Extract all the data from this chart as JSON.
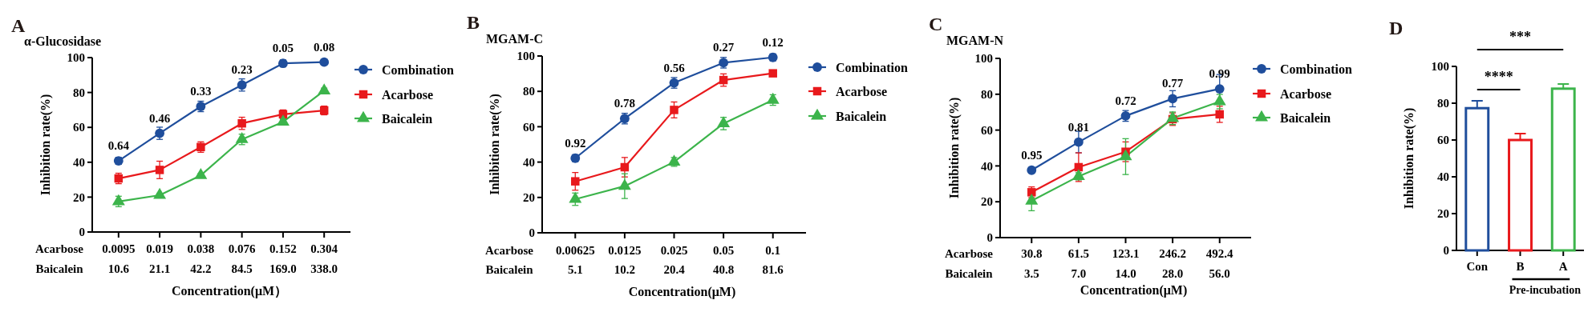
{
  "chart_data": [
    {
      "type": "line",
      "title": "α-Glucosidase",
      "xlabel": "Concentration(μM）",
      "ylabel": "Inhibition rate(%)",
      "categories": [
        "0.0095\n10.6",
        "0.019\n21.1",
        "0.038\n42.2",
        "0.076\n84.5",
        "0.152\n169.0",
        "0.304\n338.0"
      ],
      "ylim": [
        0,
        100
      ],
      "yticks": [
        0,
        20,
        40,
        60,
        80,
        100
      ],
      "legend": "right",
      "series": [
        {
          "name": "Combination",
          "color": "#1f4e9c",
          "marker": "circle",
          "values": [
            40.8,
            56.6,
            72,
            84.3,
            96.7,
            97.4
          ],
          "errors": [
            2,
            3.5,
            3,
            3.5,
            2,
            1
          ]
        },
        {
          "name": "Acarbose",
          "color": "#e8191c",
          "marker": "square",
          "values": [
            30.7,
            35.6,
            48.7,
            62.3,
            67.5,
            69.7
          ],
          "errors": [
            3,
            5,
            3,
            3.5,
            2.5,
            2.5
          ]
        },
        {
          "name": "Baicalein",
          "color": "#3cb44b",
          "marker": "triangle",
          "values": [
            17.5,
            21.1,
            32.5,
            53.1,
            63.1,
            81
          ],
          "errors": [
            3,
            1,
            1,
            3,
            1.5,
            1.5
          ]
        }
      ],
      "annotations": [
        "A",
        "Acarbose",
        "Baicalein",
        {
          "text": "0.64",
          "x": "0.0095\n10.6",
          "y": 40.8
        },
        {
          "text": "0.46",
          "x": "0.019\n21.1",
          "y": 56.6
        },
        {
          "text": "0.33",
          "x": "0.038\n42.2",
          "y": 72
        },
        {
          "text": "0.23",
          "x": "0.076\n84.5",
          "y": 84.3
        },
        {
          "text": "0.05",
          "x": "0.152\n169.0",
          "y": 96.7
        },
        {
          "text": "0.08",
          "x": "0.304\n338.0",
          "y": 97.4
        }
      ]
    },
    {
      "type": "line",
      "title": "MGAM-C",
      "xlabel": "Concentration(μM)",
      "ylabel": "Inhibition rate(%)",
      "categories": [
        "0.00625\n5.1",
        "0.0125\n10.2",
        "0.025\n20.4",
        "0.05\n40.8",
        "0.1\n81.6"
      ],
      "ylim": [
        0,
        100
      ],
      "yticks": [
        0,
        20,
        40,
        60,
        80,
        100
      ],
      "legend": "right",
      "series": [
        {
          "name": "Combination",
          "color": "#1f4e9c",
          "marker": "circle",
          "values": [
            42.2,
            64.6,
            84.8,
            96.2,
            99.2
          ],
          "errors": [
            2,
            3,
            3,
            3,
            2
          ]
        },
        {
          "name": "Acarbose",
          "color": "#e8191c",
          "marker": "square",
          "values": [
            29.1,
            37.1,
            69.5,
            86.4,
            90.2
          ],
          "errors": [
            5,
            5.5,
            4.5,
            3.5,
            1
          ]
        },
        {
          "name": "Baicalein",
          "color": "#3cb44b",
          "marker": "triangle",
          "values": [
            19,
            26.4,
            40.1,
            61.8,
            75.1
          ],
          "errors": [
            3.5,
            7,
            2.5,
            3.5,
            3
          ]
        }
      ],
      "annotations": [
        "B",
        "Acarbose",
        "Baicalein",
        {
          "text": "0.92",
          "x": "0.00625\n5.1",
          "y": 42.2
        },
        {
          "text": "0.78",
          "x": "0.0125\n10.2",
          "y": 64.6
        },
        {
          "text": "0.56",
          "x": "0.025\n20.4",
          "y": 84.8
        },
        {
          "text": "0.27",
          "x": "0.05\n40.8",
          "y": 96.2
        },
        {
          "text": "0.12",
          "x": "0.1\n81.6",
          "y": 99.2
        }
      ]
    },
    {
      "type": "line",
      "title": "MGAM-N",
      "xlabel": "Concentration(μM)",
      "ylabel": "Inhibition rate(%)",
      "categories": [
        "30.8\n3.5",
        "61.5\n7.0",
        "123.1\n14.0",
        "246.2\n28.0",
        "492.4\n56.0"
      ],
      "ylim": [
        0,
        100
      ],
      "yticks": [
        0,
        20,
        40,
        60,
        80,
        100
      ],
      "legend": "right",
      "series": [
        {
          "name": "Combination",
          "color": "#1f4e9c",
          "marker": "circle",
          "values": [
            37.6,
            53.3,
            67.9,
            77.5,
            83
          ],
          "errors": [
            1.5,
            6,
            3,
            4.5,
            8
          ]
        },
        {
          "name": "Acarbose",
          "color": "#e8191c",
          "marker": "square",
          "values": [
            25.3,
            39.3,
            47.9,
            66.1,
            68.8
          ],
          "errors": [
            3,
            8,
            5.5,
            3.5,
            4.5
          ]
        },
        {
          "name": "Baicalein",
          "color": "#3cb44b",
          "marker": "triangle",
          "values": [
            20.5,
            34.2,
            45.2,
            66.6,
            75.9
          ],
          "errors": [
            5.5,
            2,
            10,
            3.5,
            4
          ]
        }
      ],
      "annotations": [
        "C",
        "Acarbose",
        "Baicalein",
        {
          "text": "0.95",
          "x": "30.8\n3.5",
          "y": 37.6
        },
        {
          "text": "0.81",
          "x": "61.5\n7.0",
          "y": 53.3
        },
        {
          "text": "0.72",
          "x": "123.1\n14.0",
          "y": 67.9
        },
        {
          "text": "0.77",
          "x": "246.2\n28.0",
          "y": 77.5
        },
        {
          "text": "0.99",
          "x": "492.4\n56.0",
          "y": 83
        }
      ]
    },
    {
      "type": "bar",
      "ylabel": "Inhibition rate(%)",
      "categories": [
        "Con",
        "B",
        "A"
      ],
      "ylim": [
        0,
        100
      ],
      "yticks": [
        0,
        20,
        40,
        60,
        80,
        100
      ],
      "values": [
        77.3,
        60,
        87.9
      ],
      "colors": [
        "#1f4e9c",
        "#e8191c",
        "#3cb44b"
      ],
      "errors": [
        [
          77.3,
          81.3
        ],
        [
          60,
          63.5
        ],
        [
          87.9,
          90.4
        ]
      ],
      "annotations": [
        "D",
        "****",
        "***",
        "Pre-incubation"
      ]
    }
  ]
}
